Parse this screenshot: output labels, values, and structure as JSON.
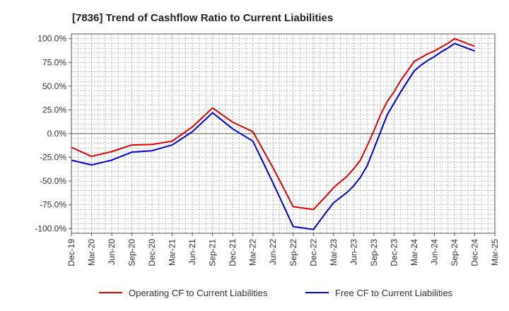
{
  "chart_data": {
    "type": "line",
    "title": "[7836]  Trend of Cashflow Ratio to Current Liabilities",
    "xlabel": "",
    "ylabel": "",
    "x_ticks": [
      "Dec-19",
      "Mar-20",
      "Jun-20",
      "Sep-20",
      "Dec-20",
      "Mar-21",
      "Jun-21",
      "Sep-21",
      "Dec-21",
      "Mar-22",
      "Jun-22",
      "Sep-22",
      "Dec-22",
      "Mar-23",
      "Jun-23",
      "Sep-23",
      "Dec-23",
      "Mar-24",
      "Jun-24",
      "Sep-24",
      "Dec-24",
      "Mar-25"
    ],
    "y_ticks": [
      "100.0%",
      "75.0%",
      "50.0%",
      "25.0%",
      "0.0%",
      "-25.0%",
      "-50.0%",
      "-75.0%",
      "-100.0%"
    ],
    "y_tick_values": [
      100,
      75,
      50,
      25,
      0,
      -25,
      -50,
      -75,
      -100
    ],
    "ylim": [
      -105,
      105
    ],
    "grid": true,
    "legend_position": "bottom",
    "series": [
      {
        "name": "Operating CF to Current Liabilities",
        "color": "#dd0000",
        "points": [
          [
            "Dec-19",
            -14.5
          ],
          [
            "Mar-20",
            -24
          ],
          [
            "Jun-20",
            -19
          ],
          [
            "Sep-20",
            -12
          ],
          [
            "Dec-20",
            -11.5
          ],
          [
            "Mar-21",
            -8
          ],
          [
            "Jun-21",
            7
          ],
          [
            "Sep-21",
            27
          ],
          [
            "Dec-21",
            12
          ],
          [
            "Mar-22",
            2
          ],
          [
            "Jun-22",
            -36
          ],
          [
            "Sep-22",
            -77
          ],
          [
            "Dec-22",
            -80
          ],
          [
            "Feb-23",
            -65
          ],
          [
            "Mar-23",
            -57
          ],
          [
            "May-23",
            -45
          ],
          [
            "Jun-23",
            -37
          ],
          [
            "Jul-23",
            -28
          ],
          [
            "Aug-23",
            -13
          ],
          [
            "Sep-23",
            3
          ],
          [
            "Oct-23",
            20
          ],
          [
            "Nov-23",
            34
          ],
          [
            "Dec-23",
            44
          ],
          [
            "Jan-24",
            56
          ],
          [
            "Feb-24",
            66
          ],
          [
            "Mar-24",
            76
          ],
          [
            "Apr-24",
            80
          ],
          [
            "May-24",
            84
          ],
          [
            "Jun-24",
            87
          ],
          [
            "Jul-24",
            91
          ],
          [
            "Aug-24",
            95
          ],
          [
            "Sep-24",
            100
          ],
          [
            "Dec-24",
            92
          ]
        ]
      },
      {
        "name": "Free CF to Current Liabilities",
        "color": "#0000cc",
        "points": [
          [
            "Dec-19",
            -28
          ],
          [
            "Mar-20",
            -33
          ],
          [
            "Jun-20",
            -28
          ],
          [
            "Sep-20",
            -19.5
          ],
          [
            "Dec-20",
            -18
          ],
          [
            "Mar-21",
            -12
          ],
          [
            "Jun-21",
            2
          ],
          [
            "Sep-21",
            22
          ],
          [
            "Dec-21",
            5
          ],
          [
            "Mar-22",
            -8
          ],
          [
            "Jun-22",
            -52
          ],
          [
            "Sep-22",
            -98
          ],
          [
            "Dec-22",
            -101
          ],
          [
            "Feb-23",
            -82
          ],
          [
            "Mar-23",
            -73
          ],
          [
            "May-23",
            -62
          ],
          [
            "Jun-23",
            -55
          ],
          [
            "Jul-23",
            -46
          ],
          [
            "Aug-23",
            -34
          ],
          [
            "Sep-23",
            -16
          ],
          [
            "Oct-23",
            2
          ],
          [
            "Nov-23",
            20
          ],
          [
            "Dec-23",
            32
          ],
          [
            "Jan-24",
            44
          ],
          [
            "Feb-24",
            55
          ],
          [
            "Mar-24",
            66
          ],
          [
            "Apr-24",
            72
          ],
          [
            "May-24",
            77
          ],
          [
            "Jun-24",
            81
          ],
          [
            "Jul-24",
            86
          ],
          [
            "Aug-24",
            90
          ],
          [
            "Sep-24",
            95
          ],
          [
            "Dec-24",
            87
          ]
        ]
      }
    ]
  }
}
